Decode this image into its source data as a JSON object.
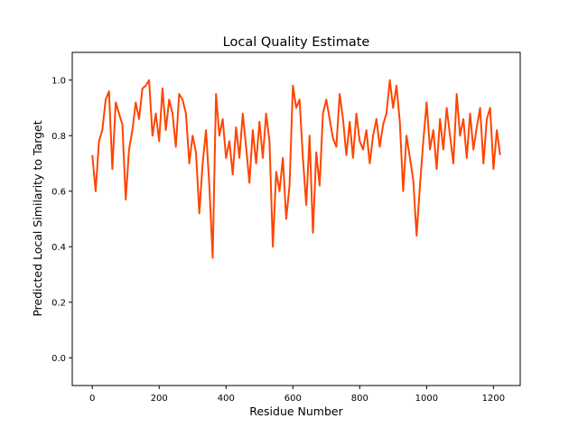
{
  "chart_data": {
    "type": "line",
    "title": "Local Quality Estimate",
    "xlabel": "Residue Number",
    "ylabel": "Predicted Local Similarity to Target",
    "xlim": [
      -60,
      1280
    ],
    "ylim": [
      -0.1,
      1.1
    ],
    "xticks": [
      0,
      200,
      400,
      600,
      800,
      1000,
      1200
    ],
    "yticks": [
      0.0,
      0.2,
      0.4,
      0.6,
      0.8,
      1.0
    ],
    "ytick_labels": [
      "0.0",
      "0.2",
      "0.4",
      "0.6",
      "0.8",
      "1.0"
    ],
    "grid": false,
    "color": "#ff4500",
    "series": [
      {
        "name": "local quality",
        "x_start": 0,
        "x_step": 10,
        "note_sampled": true,
        "values": [
          0.73,
          0.6,
          0.78,
          0.82,
          0.93,
          0.96,
          0.68,
          0.92,
          0.88,
          0.84,
          0.57,
          0.75,
          0.82,
          0.92,
          0.86,
          0.97,
          0.98,
          1.0,
          0.8,
          0.88,
          0.78,
          0.97,
          0.82,
          0.93,
          0.88,
          0.76,
          0.95,
          0.93,
          0.88,
          0.7,
          0.8,
          0.74,
          0.52,
          0.7,
          0.82,
          0.62,
          0.36,
          0.95,
          0.8,
          0.86,
          0.72,
          0.78,
          0.66,
          0.83,
          0.72,
          0.88,
          0.76,
          0.63,
          0.82,
          0.7,
          0.85,
          0.72,
          0.88,
          0.78,
          0.4,
          0.67,
          0.6,
          0.72,
          0.5,
          0.62,
          0.98,
          0.9,
          0.93,
          0.72,
          0.55,
          0.8,
          0.45,
          0.74,
          0.62,
          0.88,
          0.93,
          0.86,
          0.79,
          0.76,
          0.95,
          0.86,
          0.73,
          0.85,
          0.72,
          0.88,
          0.78,
          0.75,
          0.82,
          0.7,
          0.8,
          0.86,
          0.76,
          0.84,
          0.88,
          1.0,
          0.9,
          0.98,
          0.85,
          0.6,
          0.8,
          0.72,
          0.64,
          0.44,
          0.62,
          0.78,
          0.92,
          0.75,
          0.82,
          0.68,
          0.86,
          0.75,
          0.9,
          0.8,
          0.7,
          0.95,
          0.8,
          0.86,
          0.72,
          0.88,
          0.75,
          0.83,
          0.9,
          0.7,
          0.86,
          0.9,
          0.68,
          0.82,
          0.73
        ]
      }
    ]
  }
}
